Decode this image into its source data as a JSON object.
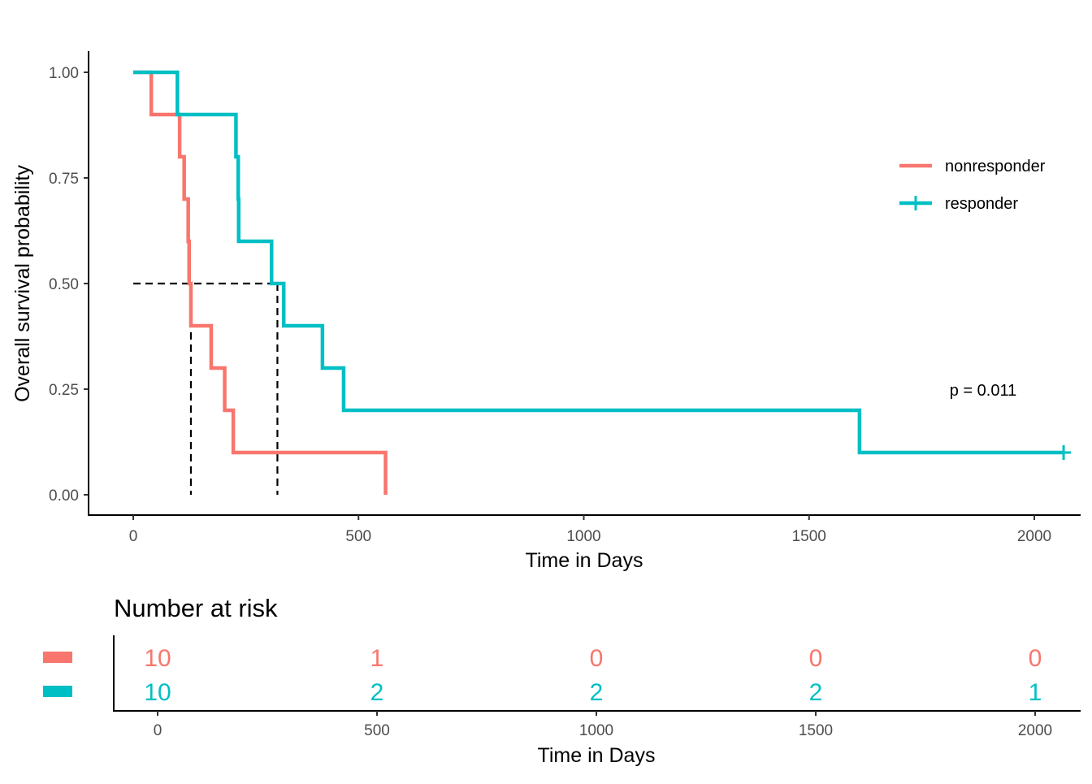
{
  "chart_data": [
    {
      "type": "line",
      "subtype": "kaplan-meier-step",
      "xlabel": "Time in Days",
      "ylabel": "Overall survival probability",
      "xlim": [
        0,
        2070
      ],
      "ylim": [
        0,
        1
      ],
      "x_ticks": [
        0,
        500,
        1000,
        1500,
        2000
      ],
      "x_tick_labels": [
        "0",
        "500",
        "1000",
        "1500",
        "2000"
      ],
      "y_ticks": [
        0,
        0.25,
        0.5,
        0.75,
        1.0
      ],
      "y_tick_labels": [
        "0.00",
        "0.25",
        "0.50",
        "0.75",
        "1.00"
      ],
      "grid": false,
      "legend_position": "right",
      "series": [
        {
          "name": "nonresponder",
          "color": "#F8766D",
          "steps": [
            [
              0,
              1.0
            ],
            [
              40,
              0.9
            ],
            [
              103,
              0.8
            ],
            [
              113,
              0.7
            ],
            [
              122,
              0.6
            ],
            [
              124,
              0.5
            ],
            [
              128,
              0.4
            ],
            [
              173,
              0.3
            ],
            [
              203,
              0.2
            ],
            [
              222,
              0.1
            ],
            [
              560,
              0.0
            ]
          ],
          "end_x": 560,
          "censored": [],
          "median": 128
        },
        {
          "name": "responder",
          "color": "#00BFC4",
          "steps": [
            [
              0,
              1.0
            ],
            [
              98,
              0.9
            ],
            [
              228,
              0.8
            ],
            [
              233,
              0.7
            ],
            [
              234,
              0.6
            ],
            [
              307,
              0.5
            ],
            [
              334,
              0.4
            ],
            [
              420,
              0.3
            ],
            [
              467,
              0.2
            ],
            [
              1612,
              0.1
            ]
          ],
          "end_x": 2065,
          "censored": [
            [
              2065,
              0.1
            ]
          ],
          "median": 320
        }
      ],
      "median_line_y": 0.5,
      "annotation": "p = 0.011"
    },
    {
      "type": "table",
      "title": "Number at risk",
      "xlabel": "Time in Days",
      "x_ticks": [
        0,
        500,
        1000,
        1500,
        2000
      ],
      "x_tick_labels": [
        "0",
        "500",
        "1000",
        "1500",
        "2000"
      ],
      "rows": [
        {
          "name": "nonresponder",
          "color": "#F8766D",
          "values": [
            "10",
            "1",
            "0",
            "0",
            "0"
          ]
        },
        {
          "name": "responder",
          "color": "#00BFC4",
          "values": [
            "10",
            "2",
            "2",
            "2",
            "1"
          ]
        }
      ]
    }
  ]
}
